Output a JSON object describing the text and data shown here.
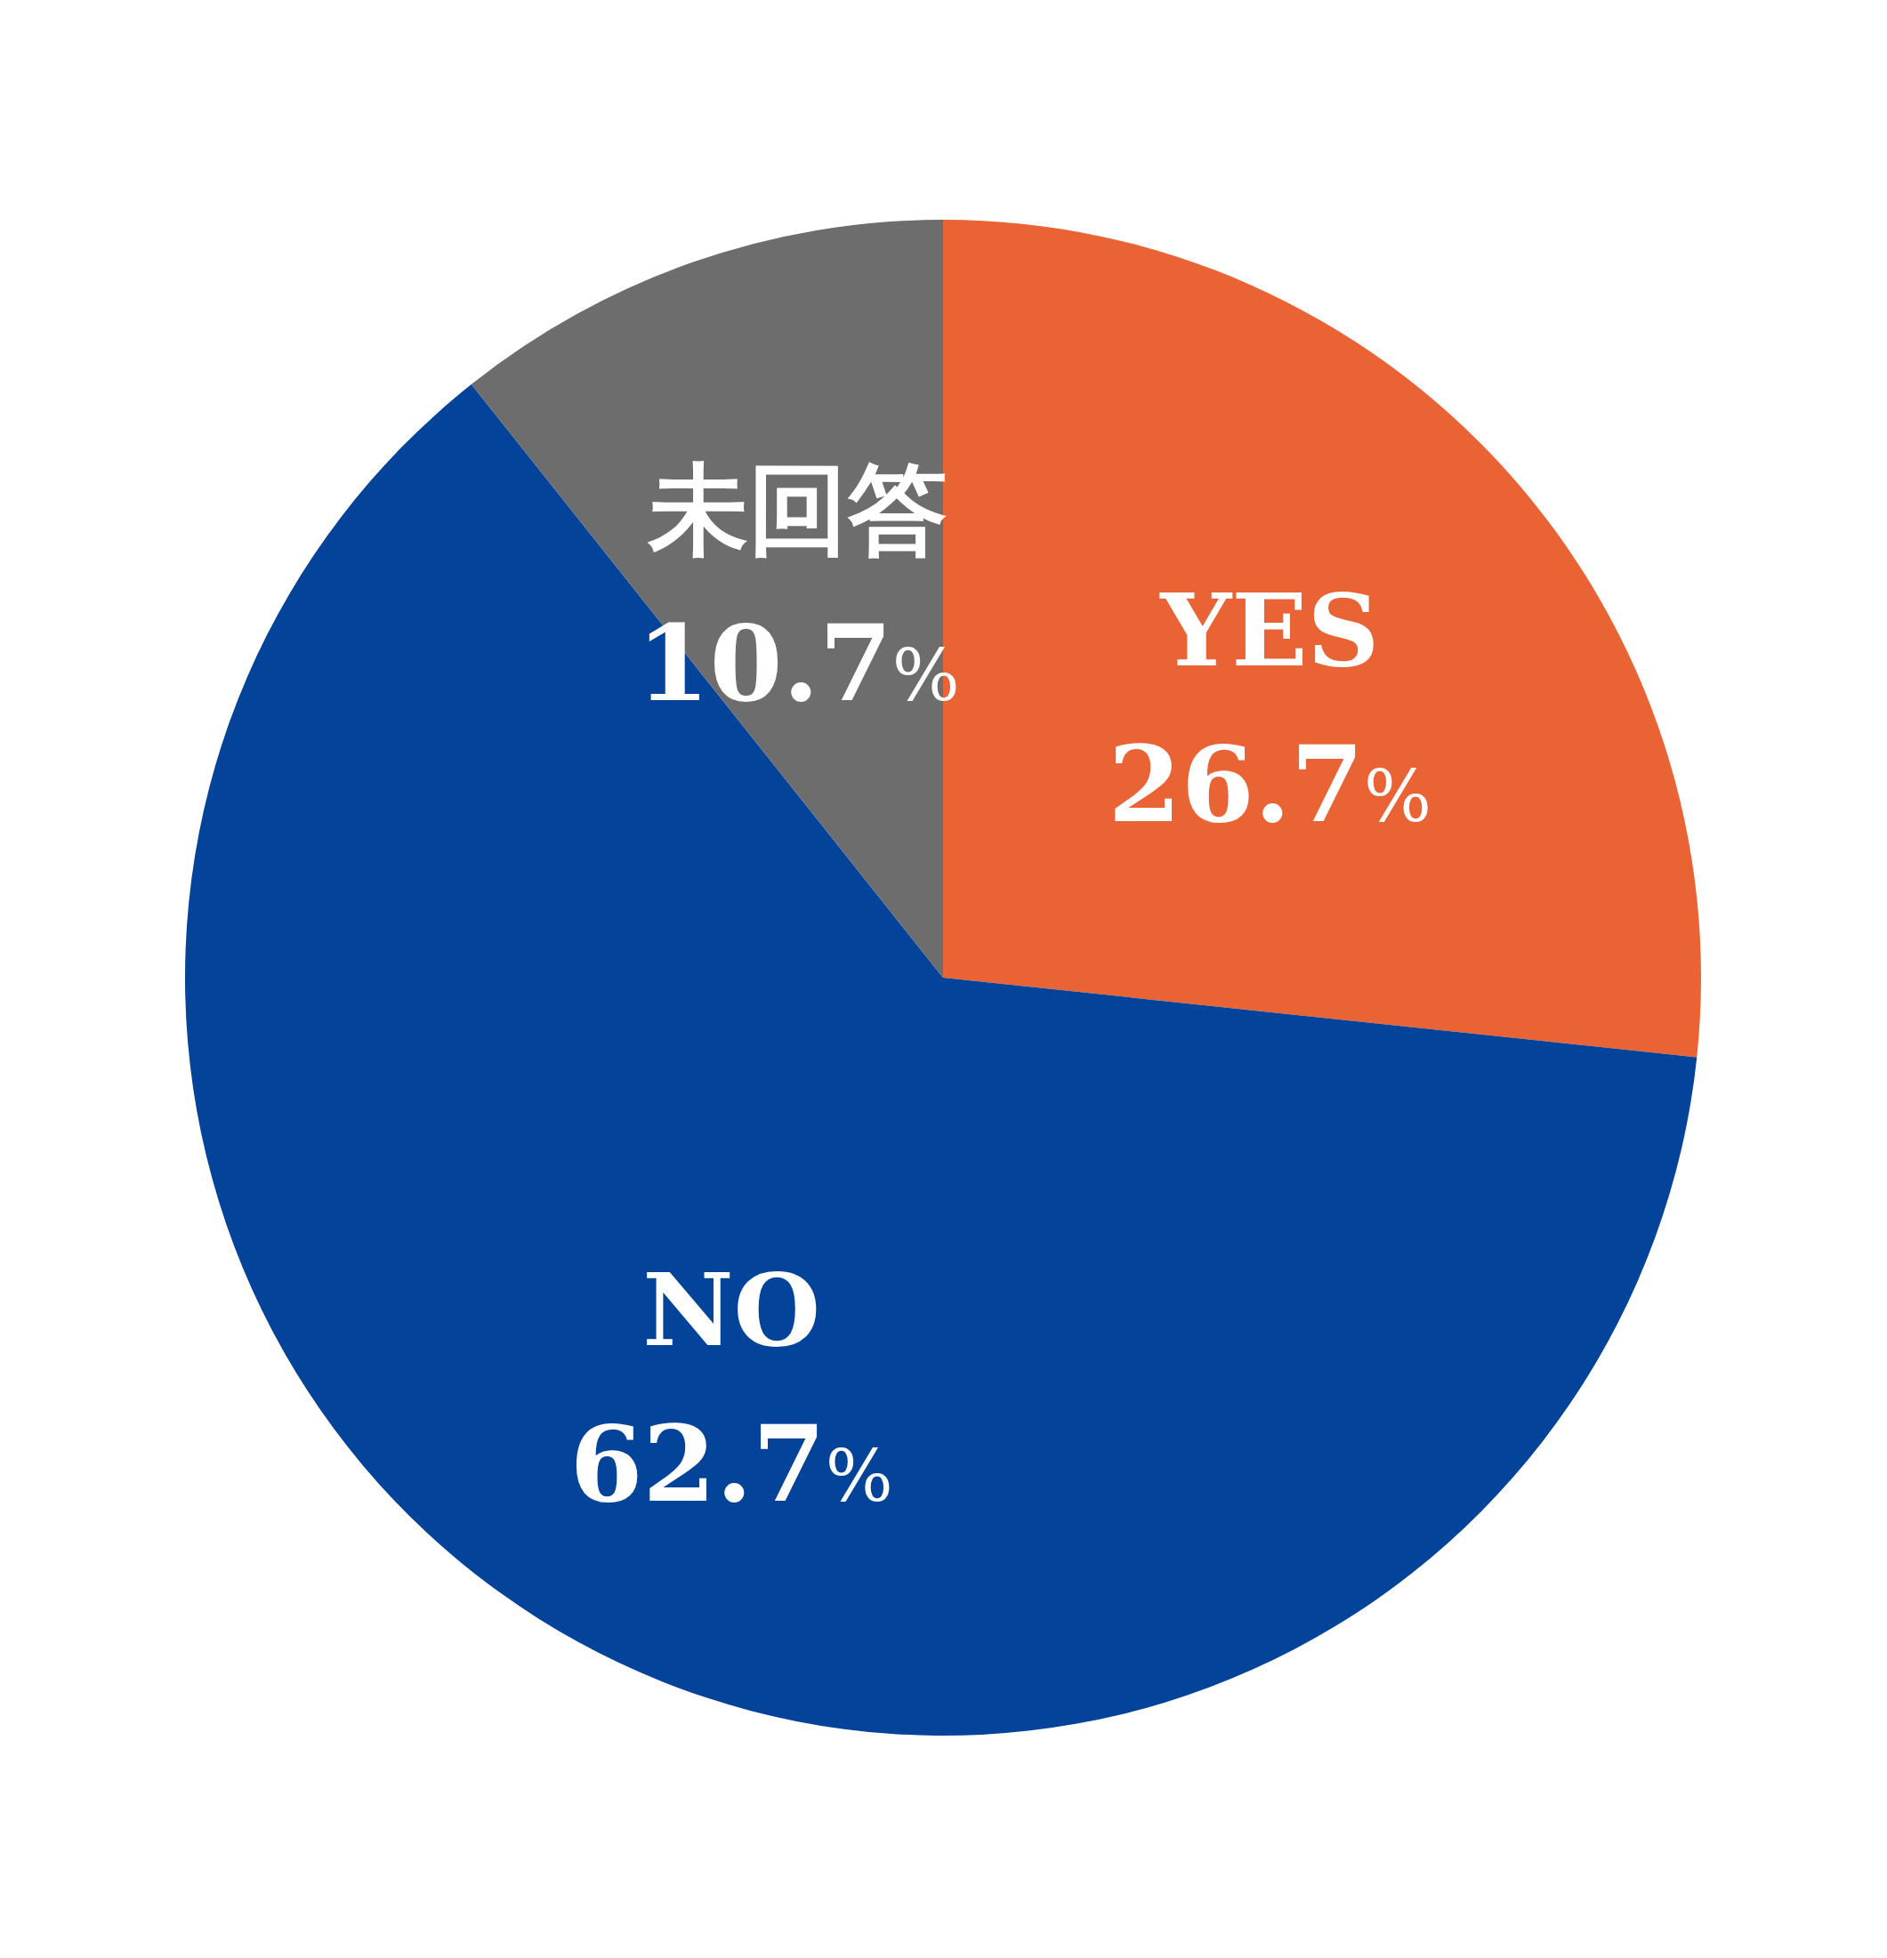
{
  "chart_data": {
    "type": "pie",
    "categories": [
      "YES",
      "NO",
      "未回答"
    ],
    "values": [
      26.7,
      62.7,
      10.7
    ],
    "colors": [
      "#ea6335",
      "#034399",
      "#6d6d6d"
    ],
    "value_labels": [
      "26.7%",
      "62.7%",
      "10.7%"
    ],
    "legend": false
  }
}
